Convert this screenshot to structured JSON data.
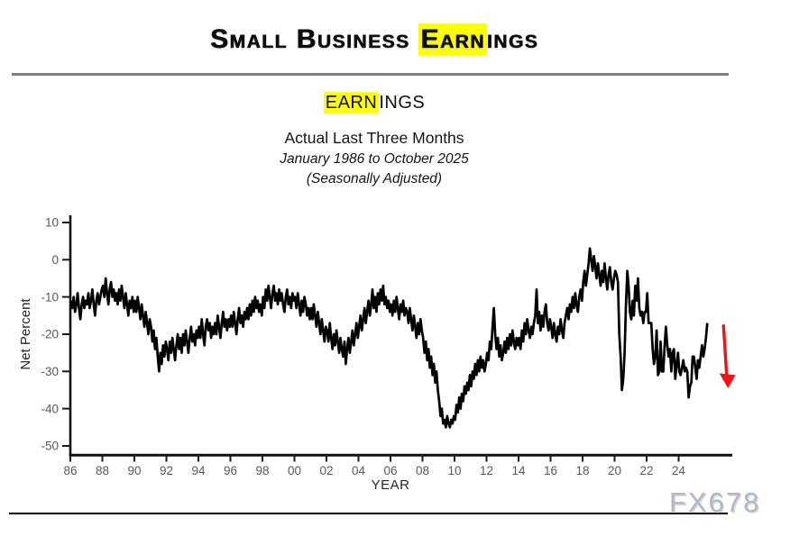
{
  "page": {
    "title_pre": "Small Business ",
    "title_highlight": "Earn",
    "title_post": "ings",
    "highlight_color": "#ffff00",
    "watermark": "FX678"
  },
  "subtitle": {
    "line1_highlight": "EARN",
    "line1_post": "INGS",
    "line2": "Actual Last Three Months",
    "line3": "January 1986 to October 2025",
    "line4": "(Seasonally Adjusted)"
  },
  "chart_data": {
    "type": "line",
    "title": "EARNINGS — Actual Last Three Months",
    "subtitle": "January 1986 to October 2025 (Seasonally Adjusted)",
    "xlabel": "YEAR",
    "ylabel": "Net Percent",
    "x_unit": "monthly",
    "x_start_year": 1986,
    "xlim_years": [
      1986,
      2026
    ],
    "ylim": [
      -50,
      10
    ],
    "grid": false,
    "legend": "none",
    "y_ticks": [
      10,
      0,
      -10,
      -20,
      -30,
      -40,
      -50
    ],
    "x_tick_years": [
      1986,
      1988,
      1990,
      1992,
      1994,
      1996,
      1998,
      2000,
      2002,
      2004,
      2006,
      2008,
      2010,
      2012,
      2014,
      2016,
      2018,
      2020,
      2022,
      2024
    ],
    "x_tick_labels": [
      "86",
      "88",
      "90",
      "92",
      "94",
      "96",
      "98",
      "00",
      "02",
      "04",
      "06",
      "08",
      "10",
      "12",
      "14",
      "16",
      "18",
      "20",
      "22",
      "24"
    ],
    "line_color": "#000000",
    "values": [
      -11,
      -13,
      -10,
      -14,
      -12,
      -9,
      -13,
      -16,
      -12,
      -10,
      -13,
      -11,
      -12,
      -9,
      -13,
      -11,
      -8,
      -12,
      -15,
      -11,
      -9,
      -12,
      -10,
      -8,
      -7,
      -10,
      -5,
      -9,
      -12,
      -8,
      -6,
      -10,
      -8,
      -11,
      -9,
      -12,
      -8,
      -11,
      -7,
      -10,
      -13,
      -9,
      -12,
      -15,
      -11,
      -13,
      -10,
      -14,
      -11,
      -14,
      -10,
      -13,
      -16,
      -12,
      -15,
      -18,
      -14,
      -17,
      -20,
      -16,
      -18,
      -22,
      -19,
      -24,
      -21,
      -26,
      -30,
      -25,
      -28,
      -23,
      -26,
      -22,
      -24,
      -27,
      -22,
      -25,
      -21,
      -24,
      -27,
      -23,
      -20,
      -24,
      -21,
      -25,
      -20,
      -23,
      -19,
      -22,
      -25,
      -21,
      -18,
      -22,
      -20,
      -23,
      -19,
      -21,
      -18,
      -21,
      -16,
      -20,
      -23,
      -18,
      -16,
      -19,
      -17,
      -21,
      -18,
      -20,
      -17,
      -20,
      -15,
      -18,
      -21,
      -17,
      -14,
      -18,
      -16,
      -19,
      -16,
      -18,
      -15,
      -18,
      -14,
      -17,
      -20,
      -16,
      -13,
      -17,
      -15,
      -18,
      -14,
      -16,
      -13,
      -16,
      -12,
      -15,
      -11,
      -14,
      -10,
      -13,
      -11,
      -14,
      -12,
      -15,
      -10,
      -13,
      -8,
      -11,
      -7,
      -10,
      -13,
      -9,
      -7,
      -11,
      -9,
      -12,
      -8,
      -11,
      -9,
      -12,
      -14,
      -10,
      -8,
      -12,
      -10,
      -13,
      -9,
      -11,
      -10,
      -13,
      -9,
      -12,
      -15,
      -11,
      -14,
      -10,
      -12,
      -15,
      -13,
      -16,
      -13,
      -16,
      -12,
      -15,
      -18,
      -14,
      -17,
      -20,
      -16,
      -19,
      -22,
      -18,
      -19,
      -22,
      -17,
      -21,
      -24,
      -20,
      -23,
      -19,
      -22,
      -25,
      -21,
      -24,
      -26,
      -22,
      -28,
      -24,
      -21,
      -25,
      -22,
      -19,
      -23,
      -20,
      -17,
      -21,
      -18,
      -15,
      -19,
      -16,
      -13,
      -17,
      -14,
      -11,
      -15,
      -12,
      -8,
      -13,
      -10,
      -14,
      -9,
      -12,
      -8,
      -11,
      -7,
      -12,
      -10,
      -13,
      -11,
      -14,
      -12,
      -15,
      -11,
      -14,
      -10,
      -13,
      -16,
      -12,
      -14,
      -11,
      -15,
      -13,
      -14,
      -17,
      -13,
      -16,
      -19,
      -15,
      -18,
      -21,
      -17,
      -20,
      -16,
      -19,
      -21,
      -25,
      -22,
      -27,
      -24,
      -29,
      -26,
      -31,
      -28,
      -33,
      -30,
      -35,
      -38,
      -42,
      -40,
      -44,
      -43,
      -45,
      -42,
      -44,
      -45,
      -43,
      -44,
      -42,
      -43,
      -39,
      -41,
      -37,
      -40,
      -36,
      -38,
      -34,
      -36,
      -33,
      -35,
      -31,
      -34,
      -30,
      -32,
      -28,
      -31,
      -27,
      -30,
      -26,
      -29,
      -27,
      -30,
      -28,
      -25,
      -27,
      -22,
      -24,
      -18,
      -13,
      -20,
      -24,
      -21,
      -26,
      -23,
      -27,
      -25,
      -22,
      -25,
      -21,
      -24,
      -20,
      -23,
      -19,
      -22,
      -24,
      -21,
      -23,
      -21,
      -24,
      -19,
      -22,
      -17,
      -20,
      -16,
      -19,
      -21,
      -18,
      -20,
      -17,
      -15,
      -8,
      -17,
      -14,
      -19,
      -15,
      -18,
      -14,
      -12,
      -17,
      -19,
      -16,
      -18,
      -21,
      -17,
      -20,
      -22,
      -18,
      -20,
      -16,
      -19,
      -21,
      -17,
      -15,
      -13,
      -16,
      -12,
      -14,
      -10,
      -13,
      -9,
      -12,
      -14,
      -10,
      -8,
      -11,
      -6,
      -3,
      -7,
      -4,
      -1,
      3,
      0,
      -3,
      1,
      -2,
      -5,
      -1,
      -4,
      -7,
      -3,
      -6,
      -1,
      -5,
      -8,
      -4,
      -2,
      -6,
      -8,
      -5,
      -3,
      -4,
      -6,
      -20,
      -26,
      -35,
      -32,
      -25,
      -12,
      -3,
      -7,
      -14,
      -16,
      -11,
      -15,
      -7,
      -11,
      -5,
      -13,
      -15,
      -14,
      -17,
      -14,
      -14,
      -9,
      -17,
      -17,
      -17,
      -24,
      -28,
      -26,
      -19,
      -31,
      -30,
      -22,
      -30,
      -30,
      -23,
      -18,
      -23,
      -26,
      -24,
      -30,
      -25,
      -24,
      -32,
      -28,
      -25,
      -30,
      -31,
      -29,
      -27,
      -30,
      -29,
      -30,
      -37,
      -34,
      -33,
      -26,
      -26,
      -29,
      -32,
      -27,
      -29,
      -26,
      -23,
      -26,
      -24,
      -21,
      -17
    ],
    "annotation": {
      "shape": "down-arrow",
      "color": "#ed1515",
      "x_year": 2026.8,
      "value_from": -17.4,
      "value_to": -34.5
    }
  }
}
